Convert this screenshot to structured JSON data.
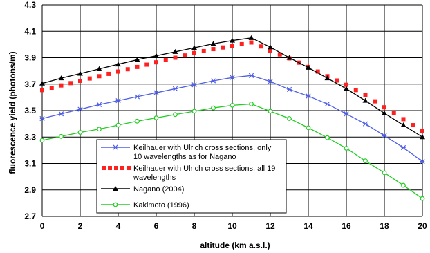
{
  "chart_data": {
    "type": "line",
    "xlabel": "altitude (km a.s.l.)",
    "ylabel": "fluorescence yield (photons/m)",
    "xlim": [
      0,
      20
    ],
    "ylim": [
      2.7,
      4.3
    ],
    "x_ticks": [
      "0",
      "2",
      "4",
      "6",
      "8",
      "10",
      "12",
      "14",
      "16",
      "18",
      "20"
    ],
    "y_ticks": [
      "2.7",
      "2.9",
      "3.1",
      "3.3",
      "3.5",
      "3.7",
      "3.9",
      "4.1",
      "4.3"
    ],
    "grid": true,
    "legend_placement": "bottom-left",
    "x": [
      0,
      1,
      2,
      3,
      4,
      5,
      6,
      7,
      8,
      9,
      10,
      11,
      12,
      13,
      14,
      15,
      16,
      17,
      18,
      19,
      20
    ],
    "series": [
      {
        "name": "Keilhauer with Ulrich cross sections, only 10 wavelengths as for Nagano",
        "color": "#4f5fe6",
        "marker": "star",
        "line": "solid",
        "values": [
          3.44,
          3.475,
          3.51,
          3.545,
          3.575,
          3.605,
          3.635,
          3.665,
          3.695,
          3.725,
          3.75,
          3.765,
          3.72,
          3.66,
          3.61,
          3.55,
          3.475,
          3.4,
          3.31,
          3.22,
          3.115
        ]
      },
      {
        "name": "Keilhauer with Ulrich cross sections, all 19 wavelengths",
        "color": "#ff2020",
        "marker": "square",
        "line": "dotted",
        "values": [
          3.655,
          3.69,
          3.725,
          3.76,
          3.795,
          3.83,
          3.865,
          3.9,
          3.935,
          3.965,
          3.99,
          4.015,
          3.955,
          3.895,
          3.83,
          3.76,
          3.695,
          3.615,
          3.525,
          3.435,
          3.345
        ]
      },
      {
        "name": "Nagano (2004)",
        "color": "#000000",
        "marker": "triangle",
        "line": "solid",
        "values": [
          3.705,
          3.745,
          3.78,
          3.815,
          3.85,
          3.885,
          3.915,
          3.945,
          3.975,
          4.005,
          4.03,
          4.05,
          3.98,
          3.9,
          3.825,
          3.745,
          3.665,
          3.575,
          3.48,
          3.39,
          3.3
        ]
      },
      {
        "name": "Kakimoto (1996)",
        "color": "#22cc22",
        "marker": "circle",
        "line": "solid",
        "values": [
          3.275,
          3.305,
          3.335,
          3.36,
          3.39,
          3.42,
          3.445,
          3.47,
          3.495,
          3.52,
          3.54,
          3.55,
          3.495,
          3.44,
          3.37,
          3.295,
          3.215,
          3.12,
          3.03,
          2.935,
          2.835
        ]
      }
    ]
  }
}
